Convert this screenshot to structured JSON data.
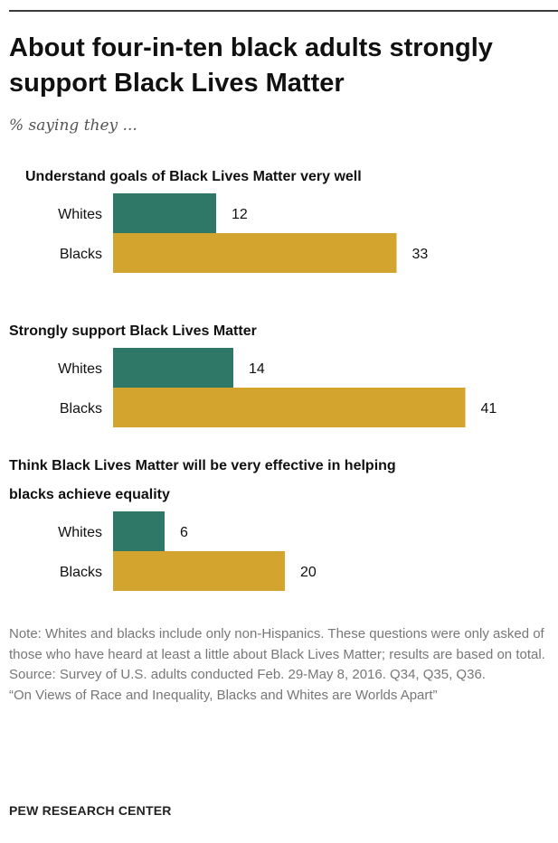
{
  "header": {
    "title": "About four-in-ten black adults strongly support Black Lives Matter",
    "subtitle": "% saying they ..."
  },
  "chart_data": {
    "type": "bar",
    "orientation": "horizontal",
    "xlim": [
      0,
      45
    ],
    "categories": [
      "Whites",
      "Blacks"
    ],
    "colors": {
      "Whites": "#2f7766",
      "Blacks": "#d3a42e"
    },
    "groups": [
      {
        "title_lines": [
          "Understand goals of Black Lives Matter very well"
        ],
        "values": [
          12,
          33
        ]
      },
      {
        "title_lines": [
          "Strongly support Black Lives Matter"
        ],
        "values": [
          14,
          41
        ]
      },
      {
        "title_lines": [
          "Think Black Lives Matter will be very effective in helping",
          "blacks achieve equality"
        ],
        "values": [
          6,
          20
        ]
      }
    ]
  },
  "notes": {
    "note": "Note: Whites and blacks include only non-Hispanics. These questions were only asked of those who have heard at least a little about Black Lives Matter; results are based on total.",
    "source": "Source: Survey of U.S. adults conducted Feb. 29-May 8, 2016. Q34, Q35, Q36.",
    "report": "“On Views of Race and Inequality, Blacks and Whites are Worlds Apart”"
  },
  "footer": {
    "brand": "PEW RESEARCH CENTER"
  }
}
